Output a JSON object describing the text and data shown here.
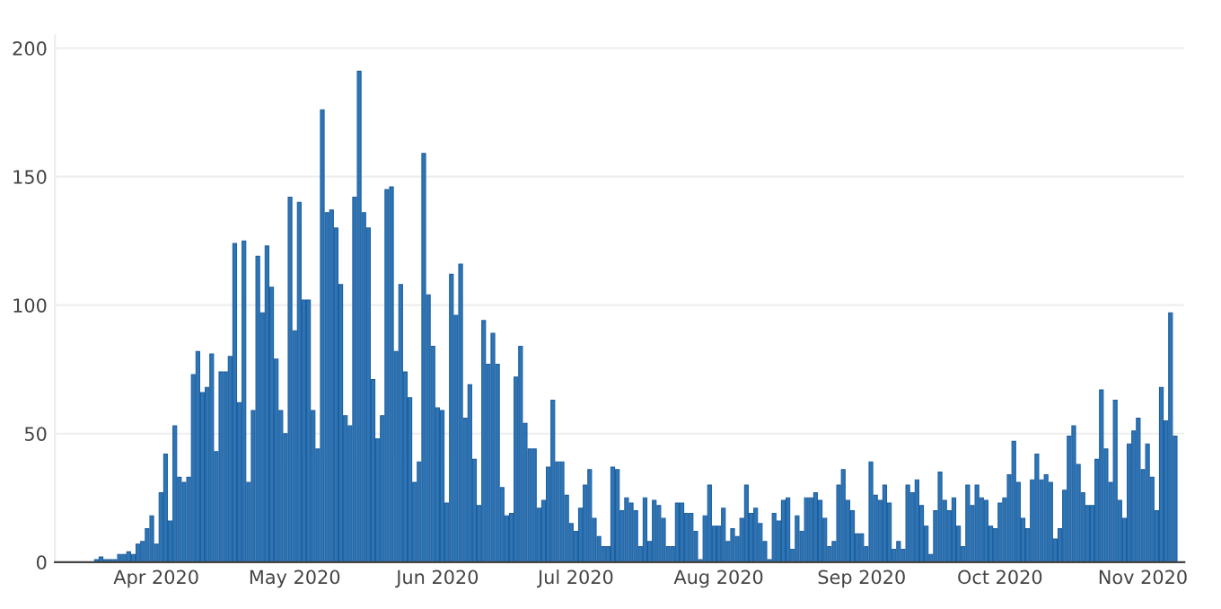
{
  "chart_data": {
    "type": "bar",
    "x": [
      "2020-03-19",
      "2020-03-20",
      "2020-03-21",
      "2020-03-22",
      "2020-03-23",
      "2020-03-24",
      "2020-03-25",
      "2020-03-26",
      "2020-03-27",
      "2020-03-28",
      "2020-03-29",
      "2020-03-30",
      "2020-03-31",
      "2020-04-01",
      "2020-04-02",
      "2020-04-03",
      "2020-04-04",
      "2020-04-05",
      "2020-04-06",
      "2020-04-07",
      "2020-04-08",
      "2020-04-09",
      "2020-04-10",
      "2020-04-11",
      "2020-04-12",
      "2020-04-13",
      "2020-04-14",
      "2020-04-15",
      "2020-04-16",
      "2020-04-17",
      "2020-04-18",
      "2020-04-19",
      "2020-04-20",
      "2020-04-21",
      "2020-04-22",
      "2020-04-23",
      "2020-04-24",
      "2020-04-25",
      "2020-04-26",
      "2020-04-27",
      "2020-04-28",
      "2020-04-29",
      "2020-04-30",
      "2020-05-01",
      "2020-05-02",
      "2020-05-03",
      "2020-05-04",
      "2020-05-05",
      "2020-05-06",
      "2020-05-07",
      "2020-05-08",
      "2020-05-09",
      "2020-05-10",
      "2020-05-11",
      "2020-05-12",
      "2020-05-13",
      "2020-05-14",
      "2020-05-15",
      "2020-05-16",
      "2020-05-17",
      "2020-05-18",
      "2020-05-19",
      "2020-05-20",
      "2020-05-21",
      "2020-05-22",
      "2020-05-23",
      "2020-05-24",
      "2020-05-25",
      "2020-05-26",
      "2020-05-27",
      "2020-05-28",
      "2020-05-29",
      "2020-05-30",
      "2020-05-31",
      "2020-06-01",
      "2020-06-02",
      "2020-06-03",
      "2020-06-04",
      "2020-06-05",
      "2020-06-06",
      "2020-06-07",
      "2020-06-08",
      "2020-06-09",
      "2020-06-10",
      "2020-06-11",
      "2020-06-12",
      "2020-06-13",
      "2020-06-14",
      "2020-06-15",
      "2020-06-16",
      "2020-06-17",
      "2020-06-18",
      "2020-06-19",
      "2020-06-20",
      "2020-06-21",
      "2020-06-22",
      "2020-06-23",
      "2020-06-24",
      "2020-06-25",
      "2020-06-26",
      "2020-06-27",
      "2020-06-28",
      "2020-06-29",
      "2020-06-30",
      "2020-07-01",
      "2020-07-02",
      "2020-07-03",
      "2020-07-04",
      "2020-07-05",
      "2020-07-06",
      "2020-07-07",
      "2020-07-08",
      "2020-07-09",
      "2020-07-10",
      "2020-07-11",
      "2020-07-12",
      "2020-07-13",
      "2020-07-14",
      "2020-07-15",
      "2020-07-16",
      "2020-07-17",
      "2020-07-18",
      "2020-07-19",
      "2020-07-20",
      "2020-07-21",
      "2020-07-22",
      "2020-07-23",
      "2020-07-24",
      "2020-07-25",
      "2020-07-26",
      "2020-07-27",
      "2020-07-28",
      "2020-07-29",
      "2020-07-30",
      "2020-07-31",
      "2020-08-01",
      "2020-08-02",
      "2020-08-03",
      "2020-08-04",
      "2020-08-05",
      "2020-08-06",
      "2020-08-07",
      "2020-08-08",
      "2020-08-09",
      "2020-08-10",
      "2020-08-11",
      "2020-08-12",
      "2020-08-13",
      "2020-08-14",
      "2020-08-15",
      "2020-08-16",
      "2020-08-17",
      "2020-08-18",
      "2020-08-19",
      "2020-08-20",
      "2020-08-21",
      "2020-08-22",
      "2020-08-23",
      "2020-08-24",
      "2020-08-25",
      "2020-08-26",
      "2020-08-27",
      "2020-08-28",
      "2020-08-29",
      "2020-08-30",
      "2020-08-31",
      "2020-09-01",
      "2020-09-02",
      "2020-09-03",
      "2020-09-04",
      "2020-09-05",
      "2020-09-06",
      "2020-09-07",
      "2020-09-08",
      "2020-09-09",
      "2020-09-10",
      "2020-09-11",
      "2020-09-12",
      "2020-09-13",
      "2020-09-14",
      "2020-09-15",
      "2020-09-16",
      "2020-09-17",
      "2020-09-18",
      "2020-09-19",
      "2020-09-20",
      "2020-09-21",
      "2020-09-22",
      "2020-09-23",
      "2020-09-24",
      "2020-09-25",
      "2020-09-26",
      "2020-09-27",
      "2020-09-28",
      "2020-09-29",
      "2020-09-30",
      "2020-10-01",
      "2020-10-02",
      "2020-10-03",
      "2020-10-04",
      "2020-10-05",
      "2020-10-06",
      "2020-10-07",
      "2020-10-08",
      "2020-10-09",
      "2020-10-10",
      "2020-10-11",
      "2020-10-12",
      "2020-10-13",
      "2020-10-14",
      "2020-10-15",
      "2020-10-16",
      "2020-10-17",
      "2020-10-18",
      "2020-10-19",
      "2020-10-20",
      "2020-10-21",
      "2020-10-22",
      "2020-10-23",
      "2020-10-24",
      "2020-10-25",
      "2020-10-26",
      "2020-10-27",
      "2020-10-28",
      "2020-10-29",
      "2020-10-30",
      "2020-10-31",
      "2020-11-01",
      "2020-11-02",
      "2020-11-03",
      "2020-11-04",
      "2020-11-05",
      "2020-11-06",
      "2020-11-07",
      "2020-11-08"
    ],
    "values": [
      1,
      2,
      1,
      1,
      1,
      3,
      3,
      4,
      3,
      7,
      8,
      13,
      18,
      7,
      27,
      42,
      16,
      53,
      33,
      31,
      33,
      73,
      82,
      66,
      68,
      81,
      43,
      74,
      74,
      80,
      124,
      62,
      125,
      31,
      59,
      119,
      97,
      123,
      107,
      79,
      59,
      50,
      142,
      90,
      140,
      102,
      102,
      59,
      44,
      176,
      136,
      137,
      130,
      108,
      57,
      53,
      142,
      191,
      136,
      130,
      71,
      48,
      57,
      145,
      146,
      82,
      108,
      74,
      64,
      31,
      39,
      159,
      104,
      84,
      60,
      59,
      23,
      112,
      96,
      116,
      56,
      69,
      40,
      22,
      94,
      77,
      89,
      77,
      29,
      18,
      19,
      72,
      84,
      54,
      44,
      44,
      21,
      24,
      37,
      63,
      39,
      39,
      26,
      15,
      12,
      21,
      30,
      36,
      17,
      10,
      6,
      6,
      37,
      36,
      20,
      25,
      23,
      20,
      6,
      25,
      8,
      24,
      22,
      17,
      6,
      6,
      23,
      23,
      19,
      19,
      12,
      1,
      18,
      30,
      14,
      14,
      21,
      8,
      13,
      10,
      17,
      30,
      19,
      21,
      15,
      8,
      1,
      19,
      16,
      24,
      25,
      5,
      18,
      12,
      25,
      25,
      27,
      24,
      17,
      6,
      8,
      30,
      36,
      24,
      20,
      11,
      11,
      6,
      39,
      26,
      24,
      30,
      23,
      5,
      8,
      5,
      30,
      27,
      32,
      22,
      14,
      3,
      20,
      35,
      24,
      20,
      25,
      14,
      6,
      30,
      22,
      30,
      25,
      24,
      14,
      13,
      23,
      25,
      34,
      47,
      31,
      17,
      13,
      32,
      42,
      32,
      34,
      31,
      9,
      13,
      28,
      49,
      53,
      38,
      27,
      22,
      22,
      40,
      67,
      44,
      31,
      63,
      24,
      17,
      46,
      51,
      56,
      36,
      46,
      33,
      20,
      68,
      55,
      97,
      49
    ],
    "color": "#2e75b6",
    "xlim": [
      "2020-03-10",
      "2020-11-10"
    ],
    "xticks": [
      {
        "value": "2020-04-01",
        "label": "Apr 2020"
      },
      {
        "value": "2020-05-01",
        "label": "May 2020"
      },
      {
        "value": "2020-06-01",
        "label": "Jun 2020"
      },
      {
        "value": "2020-07-01",
        "label": "Jul 2020"
      },
      {
        "value": "2020-08-01",
        "label": "Aug 2020"
      },
      {
        "value": "2020-09-01",
        "label": "Sep 2020"
      },
      {
        "value": "2020-10-01",
        "label": "Oct 2020"
      },
      {
        "value": "2020-11-01",
        "label": "Nov 2020"
      }
    ],
    "ylim": [
      0,
      205
    ],
    "yticks": [
      0,
      50,
      100,
      150,
      200
    ],
    "grid": "y"
  }
}
